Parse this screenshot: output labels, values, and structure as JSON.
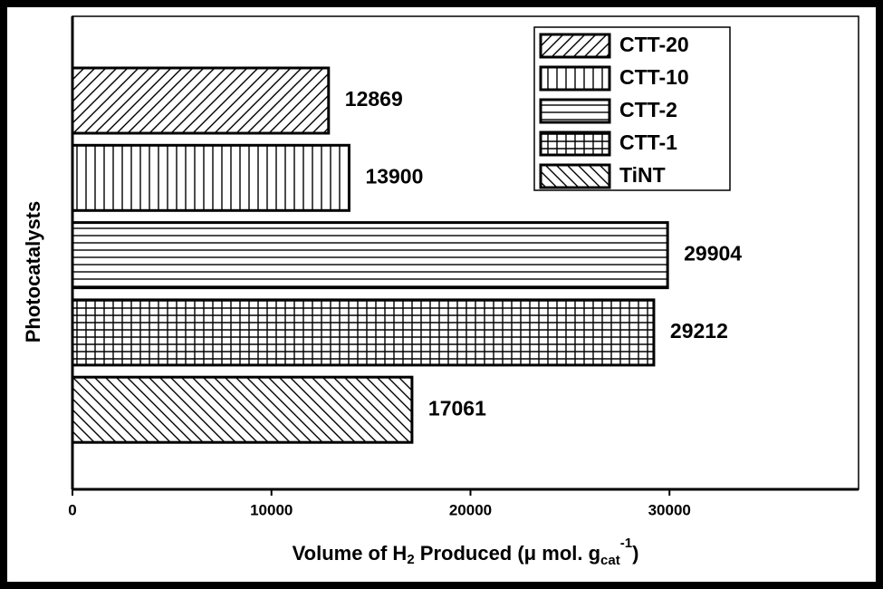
{
  "chart_data": {
    "type": "hbar",
    "categories": [
      "CTT-20",
      "CTT-10",
      "CTT-2",
      "CTT-1",
      "TiNT"
    ],
    "values": [
      12869,
      13900,
      29904,
      29212,
      17061
    ],
    "patterns": [
      "diag-up",
      "vertical",
      "horizontal",
      "grid",
      "diag-down"
    ],
    "xlabel": [
      "Volume of H",
      "2",
      " Produced (μ mol. g",
      "cat",
      "-1",
      ")"
    ],
    "ylabel": "Photocatalysts",
    "xlim": [
      0,
      39500
    ],
    "xticks": [
      0,
      10000,
      20000,
      30000
    ],
    "legend": "top-right"
  }
}
